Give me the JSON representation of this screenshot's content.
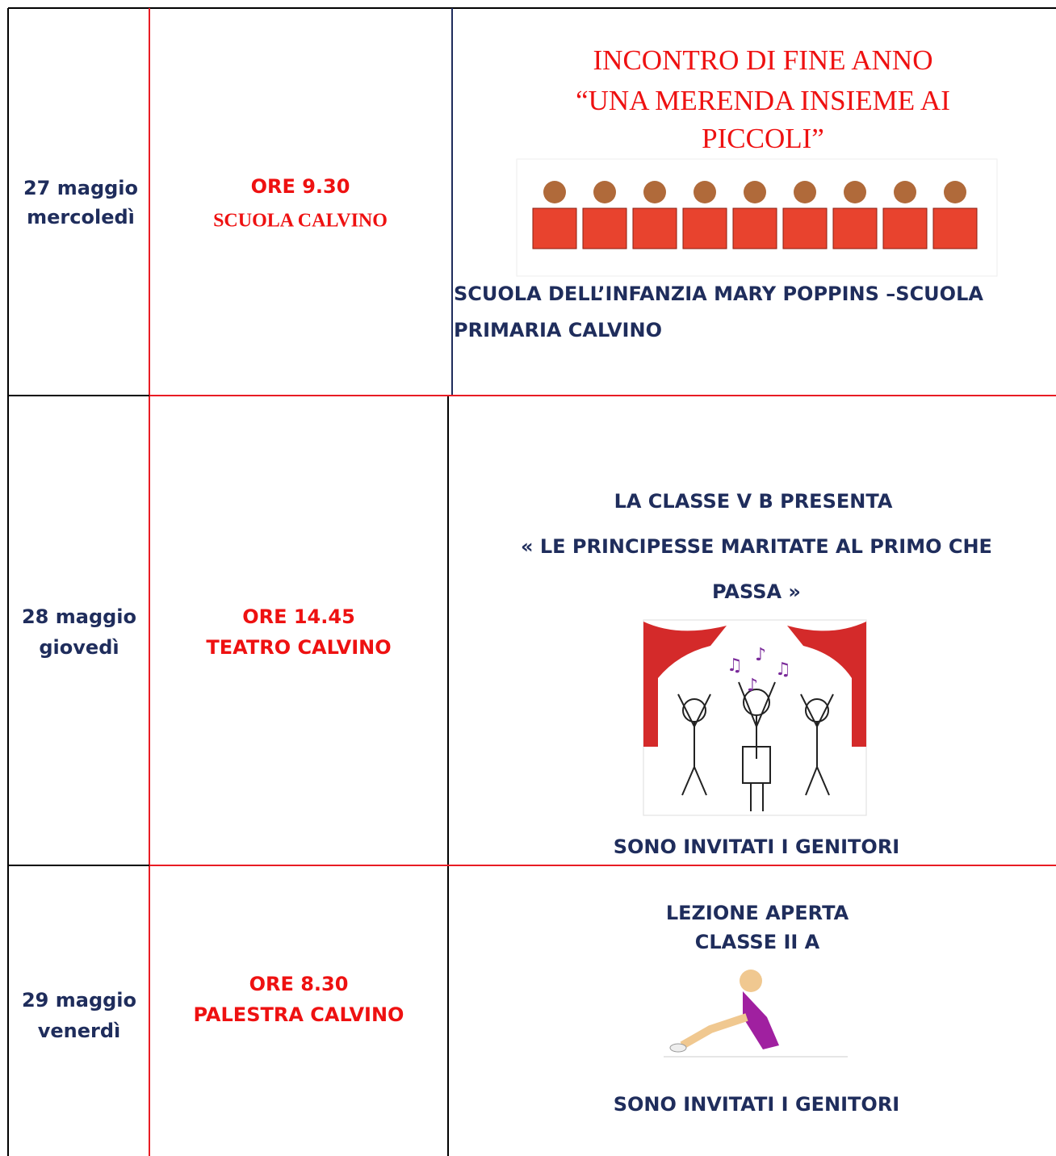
{
  "table": {
    "rows": [
      {
        "date": [
          "27 maggio",
          "mercoledì"
        ],
        "time": [
          "ORE 9.30",
          "SCUOLA CALVINO"
        ],
        "title": [
          "INCONTRO DI FINE ANNO",
          "“UNA MERENDA INSIEME AI",
          "PICCOLI”"
        ],
        "note": [
          "SCUOLA DELL’INFANZIA MARY POPPINS –SCUOLA",
          "PRIMARIA CALVINO"
        ]
      },
      {
        "date": [
          "28 maggio",
          "giovedì"
        ],
        "time": [
          "ORE 14.45",
          "TEATRO CALVINO"
        ],
        "title": [
          "LA CLASSE V B PRESENTA",
          "« LE PRINCIPESSE MARITATE AL PRIMO CHE",
          "PASSA »"
        ],
        "note": [
          "SONO INVITATI I GENITORI"
        ]
      },
      {
        "date": [
          "29 maggio",
          "venerdì"
        ],
        "time": [
          "ORE 8.30",
          "PALESTRA CALVINO"
        ],
        "title": [
          "LEZIONE APERTA",
          "CLASSE II A"
        ],
        "note": [
          "SONO INVITATI I GENITORI"
        ]
      }
    ]
  }
}
